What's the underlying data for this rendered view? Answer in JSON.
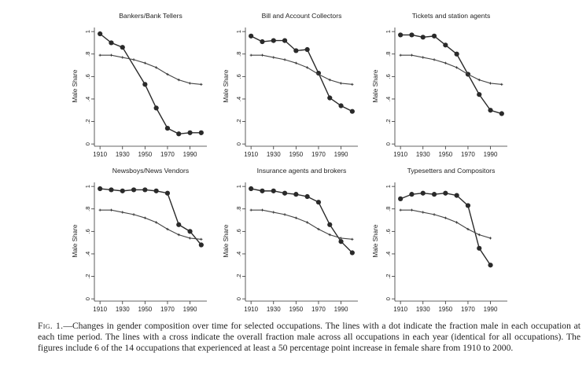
{
  "chart_data": [
    {
      "type": "line",
      "title": "Bankers/Bank Tellers",
      "ylabel": "Male Share",
      "x": [
        1910,
        1920,
        1930,
        1940,
        1950,
        1960,
        1970,
        1980,
        1990,
        2000
      ],
      "xticks": [
        "1910",
        "1930",
        "1950",
        "1970",
        "1990"
      ],
      "yticks": [
        "0",
        ".2",
        ".4",
        ".6",
        ".8",
        "1"
      ],
      "xlim": [
        1905,
        2005
      ],
      "ylim": [
        -0.02,
        1.05
      ],
      "series": [
        {
          "marker": "dot",
          "values": [
            0.98,
            0.9,
            0.86,
            null,
            0.53,
            0.32,
            0.14,
            0.09,
            0.1,
            0.1
          ]
        },
        {
          "marker": "cross",
          "values": [
            0.79,
            0.79,
            0.77,
            0.75,
            0.72,
            0.68,
            0.62,
            0.57,
            0.54,
            0.53
          ]
        }
      ]
    },
    {
      "type": "line",
      "title": "Bill and Account Collectors",
      "ylabel": "Male Share",
      "x": [
        1910,
        1920,
        1930,
        1940,
        1950,
        1960,
        1970,
        1980,
        1990,
        2000
      ],
      "xticks": [
        "1910",
        "1930",
        "1950",
        "1970",
        "1990"
      ],
      "yticks": [
        "0",
        ".2",
        ".4",
        ".6",
        ".8",
        "1"
      ],
      "xlim": [
        1905,
        2005
      ],
      "ylim": [
        -0.02,
        1.05
      ],
      "series": [
        {
          "marker": "dot",
          "values": [
            0.96,
            0.91,
            0.92,
            0.92,
            0.83,
            0.84,
            0.63,
            0.41,
            0.34,
            0.29
          ]
        },
        {
          "marker": "cross",
          "values": [
            0.79,
            0.79,
            0.77,
            0.75,
            0.72,
            0.68,
            0.62,
            0.57,
            0.54,
            0.53
          ]
        }
      ]
    },
    {
      "type": "line",
      "title": "Tickets and station agents",
      "ylabel": "Male Share",
      "x": [
        1910,
        1920,
        1930,
        1940,
        1950,
        1960,
        1970,
        1980,
        1990,
        2000
      ],
      "xticks": [
        "1910",
        "1930",
        "1950",
        "1970",
        "1990"
      ],
      "yticks": [
        "0",
        ".2",
        ".4",
        ".6",
        ".8",
        "1"
      ],
      "xlim": [
        1905,
        2005
      ],
      "ylim": [
        -0.02,
        1.05
      ],
      "series": [
        {
          "marker": "dot",
          "values": [
            0.97,
            0.97,
            0.95,
            0.96,
            0.88,
            0.8,
            0.62,
            0.44,
            0.3,
            0.27
          ]
        },
        {
          "marker": "cross",
          "values": [
            0.79,
            0.79,
            0.77,
            0.75,
            0.72,
            0.68,
            0.62,
            0.57,
            0.54,
            0.53
          ]
        }
      ]
    },
    {
      "type": "line",
      "title": "Newsboys/News Vendors",
      "ylabel": "Male Share",
      "x": [
        1910,
        1920,
        1930,
        1940,
        1950,
        1960,
        1970,
        1980,
        1990,
        2000
      ],
      "xticks": [
        "1910",
        "1930",
        "1950",
        "1970",
        "1990"
      ],
      "yticks": [
        "0",
        ".2",
        ".4",
        ".6",
        ".8",
        "1"
      ],
      "xlim": [
        1905,
        2005
      ],
      "ylim": [
        -0.02,
        1.05
      ],
      "series": [
        {
          "marker": "dot",
          "values": [
            0.98,
            0.97,
            0.96,
            0.97,
            0.97,
            0.96,
            0.94,
            0.66,
            0.6,
            0.48
          ]
        },
        {
          "marker": "cross",
          "values": [
            0.79,
            0.79,
            0.77,
            0.75,
            0.72,
            0.68,
            0.62,
            0.57,
            0.54,
            0.53
          ]
        }
      ]
    },
    {
      "type": "line",
      "title": "Insurance agents and brokers",
      "ylabel": "Male Share",
      "x": [
        1910,
        1920,
        1930,
        1940,
        1950,
        1960,
        1970,
        1980,
        1990,
        2000
      ],
      "xticks": [
        "1910",
        "1930",
        "1950",
        "1970",
        "1990"
      ],
      "yticks": [
        "0",
        ".2",
        ".4",
        ".6",
        ".8",
        "1"
      ],
      "xlim": [
        1905,
        2005
      ],
      "ylim": [
        -0.02,
        1.05
      ],
      "series": [
        {
          "marker": "dot",
          "values": [
            0.98,
            0.96,
            0.96,
            0.94,
            0.93,
            0.91,
            0.86,
            0.66,
            0.51,
            0.41
          ]
        },
        {
          "marker": "cross",
          "values": [
            0.79,
            0.79,
            0.77,
            0.75,
            0.72,
            0.68,
            0.62,
            0.57,
            0.54,
            0.53
          ]
        }
      ]
    },
    {
      "type": "line",
      "title": "Typesetters and Compositors",
      "ylabel": "Male Share",
      "x": [
        1910,
        1920,
        1930,
        1940,
        1950,
        1960,
        1970,
        1980,
        1990,
        2000
      ],
      "xticks": [
        "1910",
        "1930",
        "1950",
        "1970",
        "1990"
      ],
      "yticks": [
        "0",
        ".2",
        ".4",
        ".6",
        ".8",
        "1"
      ],
      "xlim": [
        1905,
        2005
      ],
      "ylim": [
        -0.02,
        1.05
      ],
      "series": [
        {
          "marker": "dot",
          "values": [
            0.89,
            0.93,
            0.94,
            0.93,
            0.94,
            0.92,
            0.83,
            0.45,
            0.3,
            null
          ]
        },
        {
          "marker": "cross",
          "values": [
            0.79,
            0.79,
            0.77,
            0.75,
            0.72,
            0.68,
            0.62,
            0.57,
            0.54,
            null
          ]
        }
      ]
    }
  ],
  "caption": {
    "label": "Fig. 1.",
    "text": "—Changes in gender composition over time for selected occupations. The lines with a dot indicate the fraction male in each occupation at each time period. The lines with a cross indicate the overall fraction male across all occupations in each year (identical for all occupations). The figures include 6 of the 14 occupations that experienced at least a 50 percentage point increase in female share from 1910 to 2000."
  }
}
